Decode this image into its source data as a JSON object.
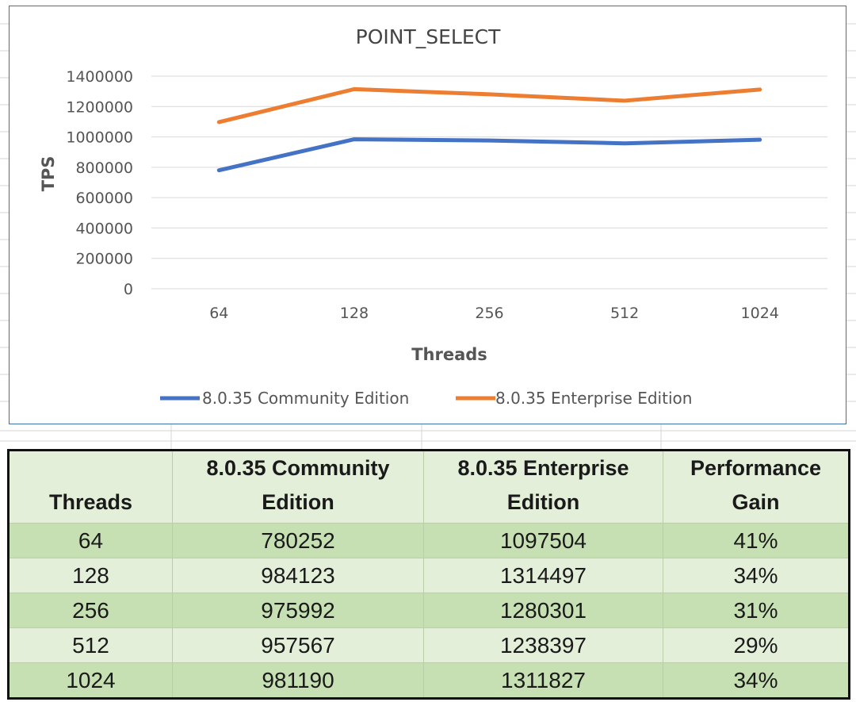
{
  "chart_data": {
    "type": "line",
    "title": "POINT_SELECT",
    "xlabel": "Threads",
    "ylabel": "TPS",
    "categories": [
      "64",
      "128",
      "256",
      "512",
      "1024"
    ],
    "ylim": [
      0,
      1400000
    ],
    "yticks": [
      "0",
      "200000",
      "400000",
      "600000",
      "800000",
      "1000000",
      "1200000",
      "1400000"
    ],
    "grid": true,
    "legend_position": "bottom",
    "series": [
      {
        "name": "8.0.35 Community Edition",
        "color": "#4472c4",
        "values": [
          780252,
          984123,
          975992,
          957567,
          981190
        ]
      },
      {
        "name": "8.0.35 Enterprise Edition",
        "color": "#ed7d31",
        "values": [
          1097504,
          1314497,
          1280301,
          1238397,
          1311827
        ]
      }
    ]
  },
  "table": {
    "headers": [
      "Threads",
      "8.0.35 Community\nEdition",
      "8.0.35 Enterprise\nEdition",
      "Performance\nGain"
    ],
    "rows": [
      [
        "64",
        "780252",
        "1097504",
        "41%"
      ],
      [
        "128",
        "984123",
        "1314497",
        "34%"
      ],
      [
        "256",
        "975992",
        "1280301",
        "31%"
      ],
      [
        "512",
        "957567",
        "1238397",
        "29%"
      ],
      [
        "1024",
        "981190",
        "1311827",
        "34%"
      ]
    ]
  }
}
